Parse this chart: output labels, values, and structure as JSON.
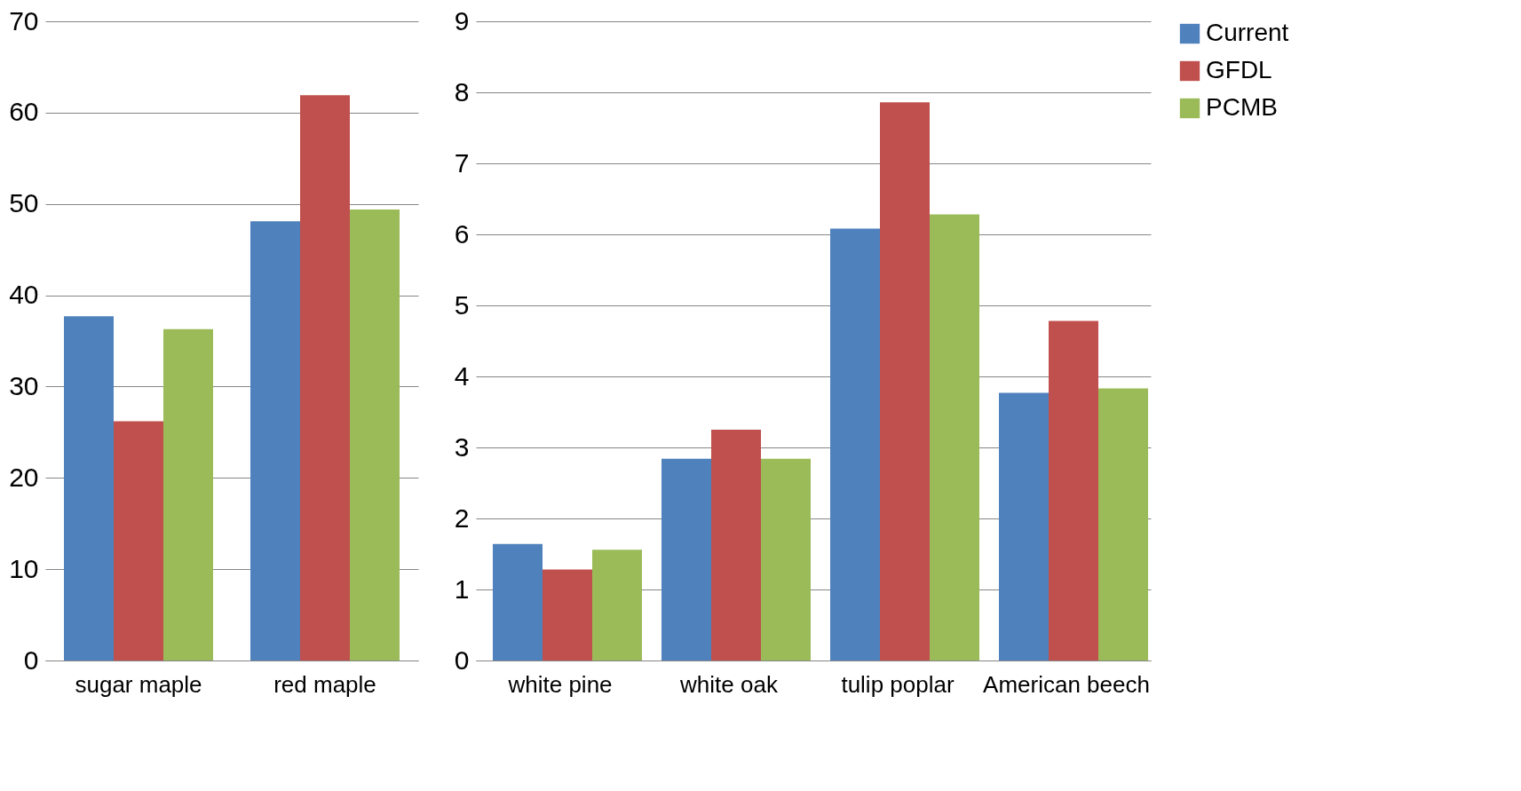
{
  "chart_data": [
    {
      "type": "bar",
      "categories": [
        "sugar maple",
        "red maple"
      ],
      "series": [
        {
          "color": "#4f81bd",
          "values": [
            37.7,
            48.1
          ]
        },
        {
          "color": "#c0504d",
          "values": [
            26.2,
            61.9
          ]
        },
        {
          "color": "#9bbb59",
          "values": [
            36.3,
            49.4
          ]
        }
      ],
      "ylim": [
        0,
        70
      ],
      "yticks": [
        0,
        10,
        20,
        30,
        40,
        50,
        60,
        70
      ],
      "grid": "y"
    },
    {
      "type": "bar",
      "categories": [
        "white pine",
        "white oak",
        "tulip poplar",
        "American beech"
      ],
      "series": [
        {
          "name": "Current",
          "color": "#4f81bd",
          "values": [
            1.64,
            2.84,
            6.08,
            3.77
          ]
        },
        {
          "name": "GFDL",
          "color": "#c0504d",
          "values": [
            1.28,
            3.25,
            7.86,
            4.78
          ]
        },
        {
          "name": "PCMB",
          "color": "#9bbb59",
          "values": [
            1.56,
            2.84,
            6.28,
            3.83
          ]
        }
      ],
      "ylim": [
        0,
        9
      ],
      "yticks": [
        0,
        1,
        2,
        3,
        4,
        5,
        6,
        7,
        8,
        9
      ],
      "grid": "y",
      "legend": "right"
    }
  ]
}
